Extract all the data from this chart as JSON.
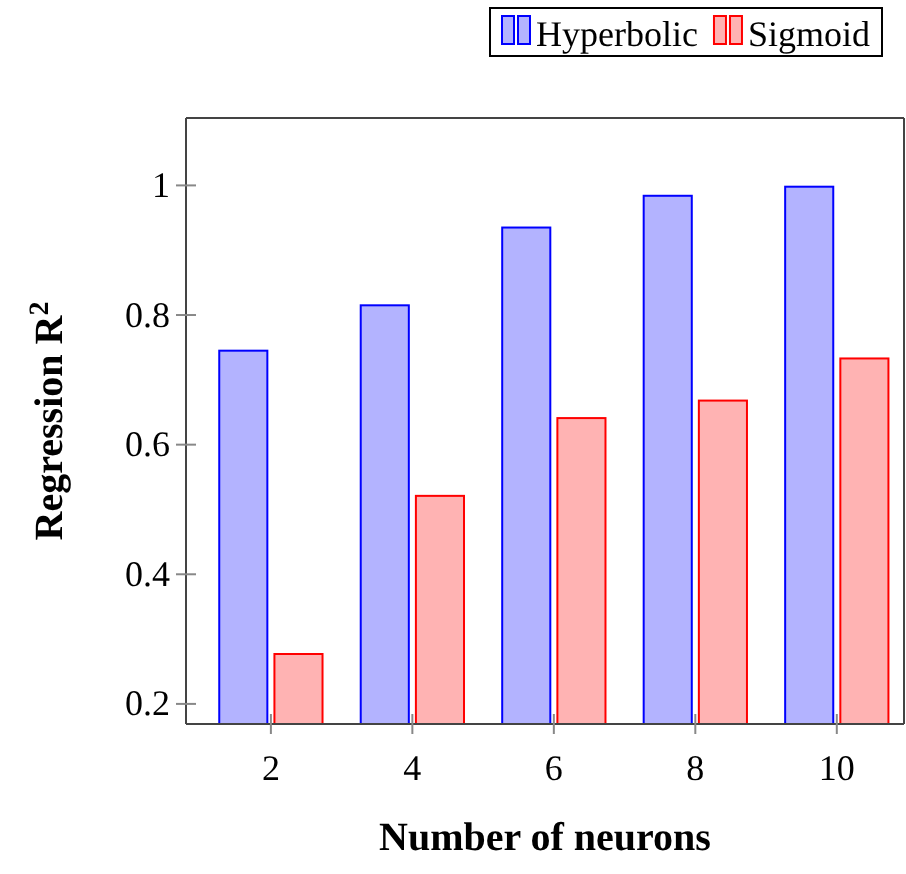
{
  "chart_data": {
    "type": "bar",
    "xlabel": "Number of neurons",
    "ylabel": "Regression R$^{2}$",
    "x": [
      2,
      4,
      6,
      8,
      10
    ],
    "xlim": [
      0.8,
      10.95
    ],
    "xticks": [
      2,
      4,
      6,
      8,
      10
    ],
    "ylim": [
      0.169,
      1.104
    ],
    "yticks": [
      {
        "value": 0.2,
        "label": "0.2"
      },
      {
        "value": 0.4,
        "label": "0.4"
      },
      {
        "value": 0.6,
        "label": "0.6"
      },
      {
        "value": 0.8,
        "label": "0.8"
      },
      {
        "value": 1,
        "label": "1"
      }
    ],
    "legend": "top right",
    "series": [
      {
        "name": "Hyperbolic",
        "color": "#b3b3ff",
        "values": [
          0.745,
          0.815,
          0.935,
          0.984,
          0.998
        ]
      },
      {
        "name": "Sigmoid",
        "color": "#ffb3b3",
        "values": [
          0.277,
          0.521,
          0.641,
          0.668,
          0.733
        ]
      }
    ]
  }
}
